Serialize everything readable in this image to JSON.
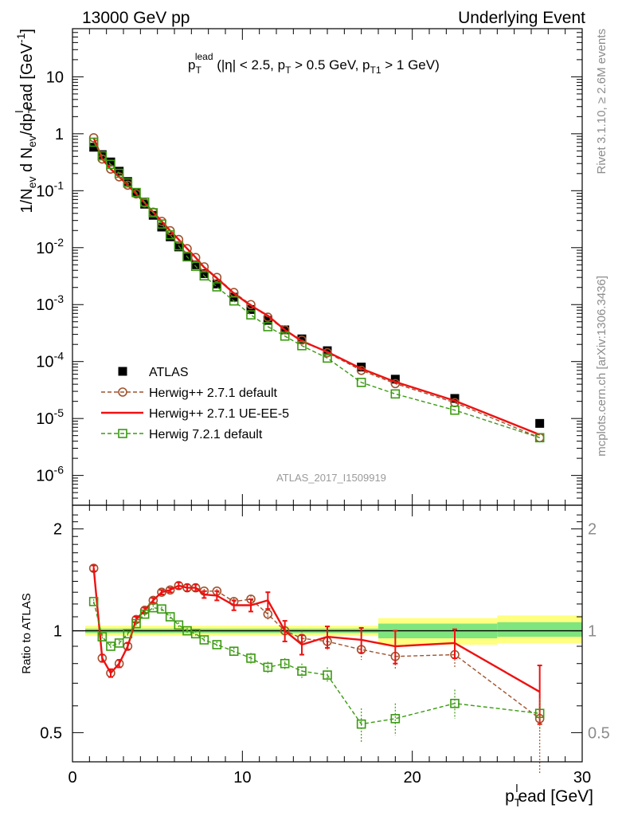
{
  "header": {
    "left": "13000 GeV pp",
    "right": "Underlying Event"
  },
  "side_labels": {
    "rivet": "Rivet 3.1.10, ≥ 2.6M events",
    "mcplots": "mcplots.cern.ch [arXiv:1306.3436]"
  },
  "analysis_id": "ATLAS_2017_I1509919",
  "colors": {
    "atlas": "#000000",
    "herwigpp_default": "#a0522d",
    "herwigpp_ueee5": "#ee1111",
    "herwig7": "#3a9a10",
    "band_inner": "#7fe57f",
    "band_outer": "#ffff80"
  },
  "chart_data": [
    {
      "type": "scatter",
      "panel": "main",
      "title_parts": {
        "p": "p",
        "sub": "T",
        "sup": "lead",
        "rest": " (|η| < 2.5, p",
        "sub2": "T",
        "rest2": " > 0.5 GeV, p",
        "sub3": "T1",
        "rest3": " > 1 GeV)"
      },
      "ylabel_parts": {
        "a": "1/N",
        "a_sub": "ev",
        "b": " d N",
        "b_sub": "ev",
        "c": "/dp",
        "c_sub": "T",
        "c_sup": "l",
        "d": "ead [GeV",
        "d_sup": "-1",
        "e": "]"
      },
      "xlim": [
        0,
        30
      ],
      "ylim": [
        3e-07,
        70
      ],
      "log_y": true,
      "y_ticks": [
        {
          "v": 1e-06,
          "base": "10",
          "exp": "-6"
        },
        {
          "v": 1e-05,
          "base": "10",
          "exp": "-5"
        },
        {
          "v": 0.0001,
          "base": "10",
          "exp": "-4"
        },
        {
          "v": 0.001,
          "base": "10",
          "exp": "-3"
        },
        {
          "v": 0.01,
          "base": "10",
          "exp": "-2"
        },
        {
          "v": 0.1,
          "base": "10",
          "exp": "-1"
        },
        {
          "v": 1,
          "base": "1",
          "exp": ""
        },
        {
          "v": 10,
          "base": "10",
          "exp": ""
        }
      ],
      "x": [
        1.25,
        1.75,
        2.25,
        2.75,
        3.25,
        3.75,
        4.25,
        4.75,
        5.25,
        5.75,
        6.25,
        6.75,
        7.25,
        7.75,
        8.5,
        9.5,
        10.5,
        11.5,
        12.5,
        13.5,
        15.0,
        17.0,
        19.0,
        22.5,
        27.5
      ],
      "series": [
        {
          "name": "ATLAS",
          "style": "data",
          "values": [
            0.58,
            0.43,
            0.32,
            0.22,
            0.145,
            0.092,
            0.058,
            0.037,
            0.023,
            0.0155,
            0.0103,
            0.0071,
            0.005,
            0.0035,
            0.0023,
            0.00135,
            0.00082,
            0.00053,
            0.00036,
            0.00025,
            0.000155,
            8e-05,
            4.9e-05,
            2.25e-05,
            8.2e-06
          ]
        },
        {
          "name": "Herwig++ 2.7.1 default",
          "style": "open-circle-dashed",
          "values": [
            0.85,
            0.36,
            0.24,
            0.175,
            0.125,
            0.088,
            0.061,
            0.042,
            0.029,
            0.0198,
            0.0139,
            0.0096,
            0.0067,
            0.0046,
            0.003,
            0.00163,
            0.001,
            0.0006,
            0.00036,
            0.000238,
            0.000143,
            7e-05,
            4.1e-05,
            1.9e-05,
            4.6e-06
          ]
        },
        {
          "name": "Herwig++ 2.7.1 UE-EE-5",
          "style": "line",
          "values": [
            0.85,
            0.36,
            0.24,
            0.175,
            0.125,
            0.088,
            0.061,
            0.042,
            0.029,
            0.0198,
            0.0139,
            0.0096,
            0.0067,
            0.0045,
            0.0029,
            0.00158,
            0.00096,
            0.00064,
            0.00036,
            0.000228,
            0.000148,
            7.5e-05,
            4.4e-05,
            2.05e-05,
            5.2e-06
          ]
        },
        {
          "name": "Herwig 7.2.1 default",
          "style": "open-square-dashed",
          "values": [
            0.71,
            0.41,
            0.29,
            0.202,
            0.137,
            0.093,
            0.063,
            0.041,
            0.026,
            0.0168,
            0.0108,
            0.0069,
            0.0047,
            0.0032,
            0.00205,
            0.00116,
            0.00066,
            0.00041,
            0.00028,
            0.00019,
            0.000115,
            4.3e-05,
            2.7e-05,
            1.4e-05,
            4.6e-06
          ]
        }
      ],
      "legend": "lower-left"
    },
    {
      "type": "line",
      "panel": "ratio",
      "ylabel": "Ratio to ATLAS",
      "xlabel_parts": {
        "a": "p",
        "sub": "T",
        "sup": "l",
        "rest": "ead [GeV]"
      },
      "xlim": [
        0,
        30
      ],
      "ylim": [
        0.41,
        2.35
      ],
      "log_y": true,
      "x_ticks": [
        0,
        10,
        20,
        30
      ],
      "y_ticks": [
        0.5,
        1,
        2
      ],
      "x": [
        1.25,
        1.75,
        2.25,
        2.75,
        3.25,
        3.75,
        4.25,
        4.75,
        5.25,
        5.75,
        6.25,
        6.75,
        7.25,
        7.75,
        8.5,
        9.5,
        10.5,
        11.5,
        12.5,
        13.5,
        15.0,
        17.0,
        19.0,
        22.5,
        27.5
      ],
      "uncertainty_band": [
        {
          "x0": 0.75,
          "x1": 18.0,
          "inner": [
            0.985,
            1.015
          ],
          "outer": [
            0.965,
            1.035
          ]
        },
        {
          "x0": 18.0,
          "x1": 25.0,
          "inner": [
            0.95,
            1.05
          ],
          "outer": [
            0.91,
            1.09
          ]
        },
        {
          "x0": 25.0,
          "x1": 30.0,
          "inner": [
            0.96,
            1.06
          ],
          "outer": [
            0.92,
            1.11
          ]
        }
      ],
      "series": [
        {
          "name": "Herwig++ 2.7.1 default",
          "style": "open-circle-dashed",
          "values": [
            1.53,
            0.83,
            0.75,
            0.8,
            0.9,
            1.08,
            1.15,
            1.23,
            1.3,
            1.32,
            1.36,
            1.34,
            1.34,
            1.31,
            1.31,
            1.22,
            1.24,
            1.12,
            1.0,
            0.95,
            0.93,
            0.88,
            0.84,
            0.85,
            0.55
          ],
          "errors": [
            0.02,
            0.02,
            0.02,
            0.02,
            0.02,
            0.02,
            0.02,
            0.02,
            0.02,
            0.02,
            0.02,
            0.02,
            0.02,
            0.02,
            0.02,
            0.03,
            0.03,
            0.04,
            0.05,
            0.05,
            0.06,
            0.06,
            0.07,
            0.07,
            0.17
          ]
        },
        {
          "name": "Herwig++ 2.7.1 UE-EE-5",
          "style": "line",
          "values": [
            1.53,
            0.83,
            0.75,
            0.8,
            0.9,
            1.08,
            1.15,
            1.23,
            1.3,
            1.32,
            1.36,
            1.34,
            1.34,
            1.28,
            1.27,
            1.19,
            1.19,
            1.23,
            1.0,
            0.91,
            0.96,
            0.94,
            0.9,
            0.92,
            0.66
          ],
          "errors": [
            0.03,
            0.02,
            0.02,
            0.02,
            0.02,
            0.02,
            0.02,
            0.02,
            0.02,
            0.02,
            0.03,
            0.03,
            0.03,
            0.03,
            0.04,
            0.04,
            0.05,
            0.07,
            0.07,
            0.06,
            0.07,
            0.08,
            0.1,
            0.09,
            0.13
          ]
        },
        {
          "name": "Herwig 7.2.1 default",
          "style": "open-square-dashed",
          "values": [
            1.22,
            0.96,
            0.9,
            0.92,
            0.98,
            1.05,
            1.12,
            1.17,
            1.16,
            1.1,
            1.04,
            1.0,
            0.98,
            0.94,
            0.91,
            0.87,
            0.83,
            0.78,
            0.8,
            0.76,
            0.74,
            0.53,
            0.55,
            0.61,
            0.57
          ],
          "errors": [
            0.02,
            0.02,
            0.02,
            0.02,
            0.02,
            0.02,
            0.02,
            0.02,
            0.02,
            0.02,
            0.02,
            0.02,
            0.02,
            0.02,
            0.02,
            0.02,
            0.03,
            0.03,
            0.03,
            0.04,
            0.04,
            0.06,
            0.06,
            0.06,
            0.06
          ]
        }
      ]
    }
  ]
}
